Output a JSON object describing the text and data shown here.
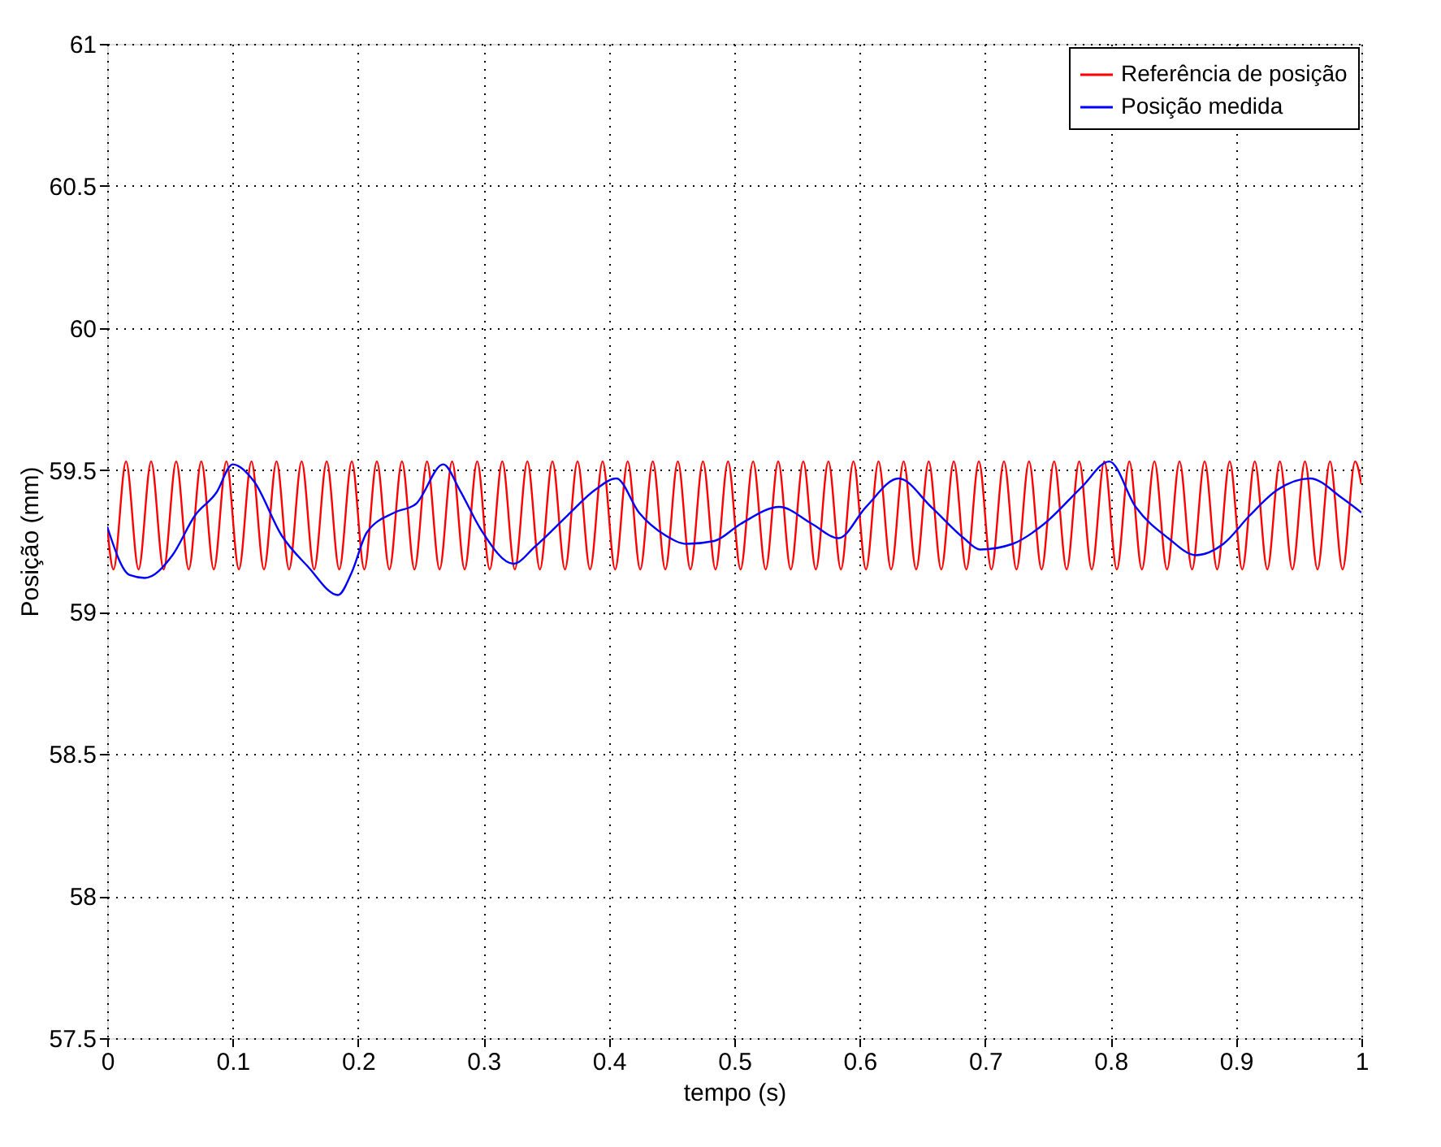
{
  "chart_data": {
    "type": "line",
    "xlabel": "tempo (s)",
    "ylabel": "Posição (mm)",
    "xlim": [
      0,
      1
    ],
    "ylim": [
      57.5,
      61
    ],
    "xticks": [
      0,
      0.1,
      0.2,
      0.3,
      0.4,
      0.5,
      0.6,
      0.7,
      0.8,
      0.9,
      1
    ],
    "yticks": [
      57.5,
      58,
      58.5,
      59,
      59.5,
      60,
      60.5,
      61
    ],
    "grid": true,
    "legend": "top right",
    "marker": "none",
    "line_style": "solid",
    "series": [
      {
        "name": "Referência de posição",
        "color": "#ff0000",
        "x": [
          0,
          0.005,
          0.015,
          0.025,
          0.035,
          0.045,
          0.055,
          0.065,
          0.075,
          0.085,
          0.095,
          0.105,
          0.115,
          0.125,
          0.135,
          0.145,
          0.155,
          0.165,
          0.175,
          0.185,
          0.195,
          0.205,
          0.215,
          0.225,
          0.235,
          0.245,
          0.255,
          0.265,
          0.275,
          0.285,
          0.295,
          0.305,
          0.315,
          0.325,
          0.335,
          0.345,
          0.355,
          0.365,
          0.375,
          0.385,
          0.395,
          0.405,
          0.415,
          0.425,
          0.435,
          0.445,
          0.455,
          0.465,
          0.475,
          0.485,
          0.495,
          0.505,
          0.515,
          0.525,
          0.535,
          0.545,
          0.555,
          0.565,
          0.575,
          0.585,
          0.595,
          0.605,
          0.615,
          0.625,
          0.635,
          0.645,
          0.655,
          0.665,
          0.675,
          0.685,
          0.695,
          0.705,
          0.715,
          0.725,
          0.735,
          0.745,
          0.755,
          0.765,
          0.775,
          0.785,
          0.795,
          0.805,
          0.815,
          0.825,
          0.835,
          0.845,
          0.855,
          0.865,
          0.875,
          0.885,
          0.895,
          0.905,
          0.915,
          0.925,
          0.935,
          0.945,
          0.955,
          0.965,
          0.975,
          0.985,
          0.995,
          1
        ],
        "values": [
          59.3,
          59.15,
          59.53,
          59.15,
          59.53,
          59.15,
          59.53,
          59.15,
          59.53,
          59.15,
          59.53,
          59.15,
          59.53,
          59.15,
          59.53,
          59.15,
          59.53,
          59.15,
          59.53,
          59.15,
          59.53,
          59.15,
          59.53,
          59.15,
          59.53,
          59.15,
          59.53,
          59.15,
          59.53,
          59.15,
          59.53,
          59.15,
          59.53,
          59.15,
          59.53,
          59.15,
          59.53,
          59.15,
          59.53,
          59.15,
          59.53,
          59.15,
          59.53,
          59.15,
          59.53,
          59.15,
          59.53,
          59.15,
          59.53,
          59.15,
          59.53,
          59.15,
          59.53,
          59.15,
          59.53,
          59.15,
          59.53,
          59.15,
          59.53,
          59.15,
          59.53,
          59.15,
          59.53,
          59.15,
          59.53,
          59.15,
          59.53,
          59.15,
          59.53,
          59.15,
          59.53,
          59.15,
          59.53,
          59.15,
          59.53,
          59.15,
          59.53,
          59.15,
          59.53,
          59.15,
          59.53,
          59.15,
          59.53,
          59.15,
          59.53,
          59.15,
          59.53,
          59.15,
          59.53,
          59.15,
          59.53,
          59.15,
          59.53,
          59.15,
          59.53,
          59.15,
          59.53,
          59.15,
          59.53,
          59.15,
          59.53,
          59.45
        ]
      },
      {
        "name": "Posição medida",
        "color": "#0000ff",
        "x": [
          0,
          0.018,
          0.03,
          0.052,
          0.07,
          0.087,
          0.1,
          0.117,
          0.139,
          0.16,
          0.184,
          0.195,
          0.207,
          0.229,
          0.246,
          0.268,
          0.281,
          0.298,
          0.324,
          0.341,
          0.367,
          0.389,
          0.406,
          0.424,
          0.445,
          0.462,
          0.484,
          0.505,
          0.536,
          0.562,
          0.583,
          0.605,
          0.631,
          0.657,
          0.683,
          0.696,
          0.722,
          0.747,
          0.777,
          0.799,
          0.82,
          0.846,
          0.868,
          0.89,
          0.911,
          0.933,
          0.959,
          0.985,
          1
        ],
        "values": [
          59.3,
          59.13,
          59.12,
          59.2,
          59.34,
          59.42,
          59.52,
          59.46,
          59.27,
          59.16,
          59.06,
          59.14,
          59.28,
          59.35,
          59.38,
          59.52,
          59.43,
          59.29,
          59.17,
          59.23,
          59.34,
          59.43,
          59.47,
          59.35,
          59.27,
          59.24,
          59.25,
          59.31,
          59.37,
          59.31,
          59.26,
          59.37,
          59.47,
          59.37,
          59.26,
          59.22,
          59.24,
          59.31,
          59.44,
          59.53,
          59.37,
          59.26,
          59.2,
          59.24,
          59.34,
          59.43,
          59.47,
          59.4,
          59.35
        ]
      }
    ]
  }
}
